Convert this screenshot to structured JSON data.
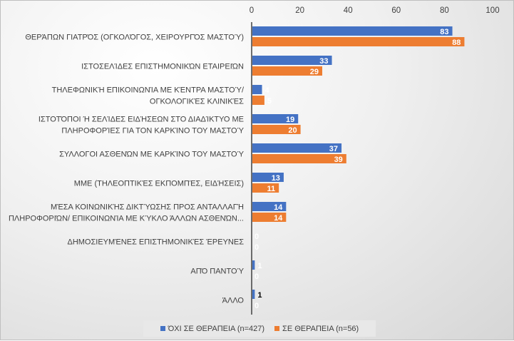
{
  "chart_data": {
    "type": "bar",
    "orientation": "horizontal",
    "categories": [
      [
        "ΘΕΡΆΠΩΝ ΓΙΑΤΡΌΣ (ΟΓΚΟΛΌΓΟΣ, ΧΕΙΡΟΥΡΓΌΣ ΜΑΣΤΟΎ)"
      ],
      [
        "ΙΣΤΟΣΕΛΊΔΕΣ ΕΠΙΣΤΗΜΟΝΙΚΏΝ ΕΤΑΙΡΕΙΏΝ"
      ],
      [
        "ΤΗΛΕΦΩΝΙΚΉ ΕΠΙΚΟΙΝΩΝΊΑ ΜΕ ΚΈΝΤΡΑ ΜΑΣΤΟΎ/",
        "ΟΓΚΟΛΟΓΙΚΈΣ ΚΛΙΝΙΚΈΣ"
      ],
      [
        "ΙΣΤΟΤΌΠΟΙ Ή ΣΕΛΊΔΕΣ ΕΙΔΉΣΕΩΝ ΣΤΟ ΔΙΑΔΊΚΤΥΟ ΜΕ",
        "ΠΛΗΡΟΦΟΡΊΕΣ ΓΙΑ ΤΟΝ ΚΑΡΚΊΝΟ ΤΟΥ ΜΑΣΤΟΎ"
      ],
      [
        "ΣΥΛΛΟΓΟΙ ΑΣΘΕΝΏΝ ΜΕ  ΚΑΡΚΊΝΟ ΤΟΥ ΜΑΣΤΟΎ"
      ],
      [
        "ΜΜΕ  (ΤΗΛΕΟΠΤΙΚΈΣ ΕΚΠΟΜΠΈΣ, ΕΙΔΉΣΕΙΣ)"
      ],
      [
        "ΜΈΣΑ ΚΟΙΝΩΝΙΚΉΣ ΔΙΚΤΎΩΣΗΣ ΠΡΟΣ ΑΝΤΑΛΛΑΓΉ",
        "ΠΛΗΡΟΦΟΡΙΏΝ/ ΕΠΙΚΟΙΝΩΝΊΑ ΜΕ ΚΎΚΛΟ ΆΛΛΩΝ ΑΣΘΕΝΏΝ..."
      ],
      [
        "ΔΗΜΟΣΙΕΥΜΈΝΕΣ  ΕΠΙΣΤΗΜΟΝΙΚΈΣ ΈΡΕΥΝΕΣ"
      ],
      [
        "ΑΠΌ ΠΑΝΤΟΎ"
      ],
      [
        "ΆΛΛΟ"
      ]
    ],
    "series": [
      {
        "name": "ΌΧΙ ΣΕ ΘΕΡΑΠΕΙΑ (n=427)",
        "color": "#4472c4",
        "values": [
          83,
          33,
          4,
          19,
          37,
          13,
          14,
          0,
          1,
          1
        ]
      },
      {
        "name": "ΣΕ ΘΕΡΑΠΕΙΑ (n=56)",
        "color": "#ed7d31",
        "values": [
          88,
          29,
          5,
          20,
          39,
          11,
          14,
          0,
          0,
          0
        ]
      }
    ],
    "xlim": [
      0,
      100
    ],
    "xticks": [
      "0",
      "20",
      "40",
      "60",
      "80",
      "100"
    ],
    "xtick_values": [
      0,
      20,
      40,
      60,
      80,
      100
    ],
    "axis_position": "top",
    "legend": "bottom",
    "grid": false
  }
}
